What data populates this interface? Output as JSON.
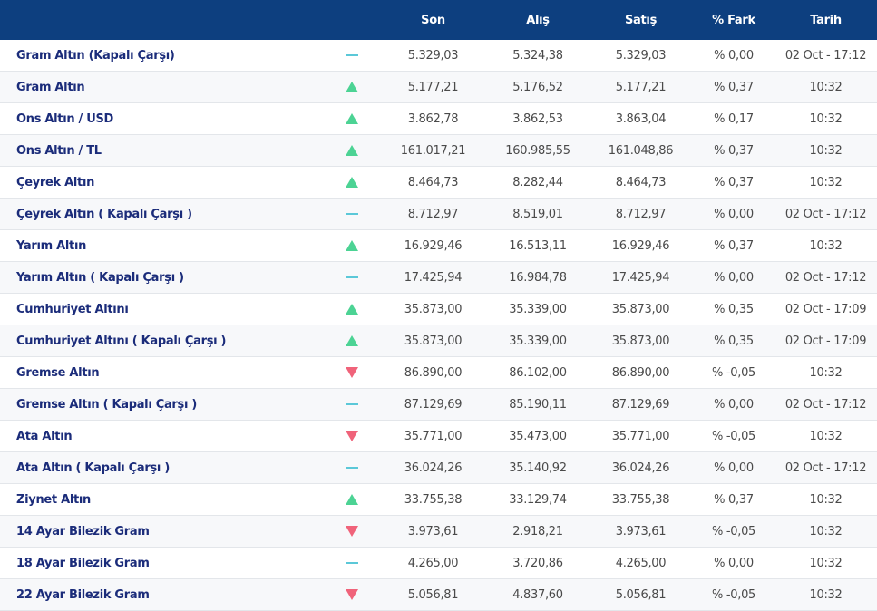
{
  "colors": {
    "header_bg": "#0d3f7f",
    "up": "#4cd394",
    "down": "#f0637a",
    "flat": "#5bc8d8",
    "name": "#1b2c7a"
  },
  "headers": {
    "son": "Son",
    "alis": "Alış",
    "satis": "Satış",
    "fark": "% Fark",
    "tarih": "Tarih"
  },
  "rows": [
    {
      "name": "Gram Altın (Kapalı Çarşı)",
      "trend": "flat-icon",
      "son": "5.329,03",
      "alis": "5.324,38",
      "satis": "5.329,03",
      "fark": "% 0,00",
      "tarih": "02 Oct - 17:12"
    },
    {
      "name": "Gram Altın",
      "trend": "up-icon",
      "son": "5.177,21",
      "alis": "5.176,52",
      "satis": "5.177,21",
      "fark": "% 0,37",
      "tarih": "10:32"
    },
    {
      "name": "Ons Altın / USD",
      "trend": "up-icon",
      "son": "3.862,78",
      "alis": "3.862,53",
      "satis": "3.863,04",
      "fark": "% 0,17",
      "tarih": "10:32"
    },
    {
      "name": "Ons Altın / TL",
      "trend": "up-icon",
      "son": "161.017,21",
      "alis": "160.985,55",
      "satis": "161.048,86",
      "fark": "% 0,37",
      "tarih": "10:32"
    },
    {
      "name": "Çeyrek Altın",
      "trend": "up-icon",
      "son": "8.464,73",
      "alis": "8.282,44",
      "satis": "8.464,73",
      "fark": "% 0,37",
      "tarih": "10:32"
    },
    {
      "name": "Çeyrek Altın ( Kapalı Çarşı )",
      "trend": "flat-icon",
      "son": "8.712,97",
      "alis": "8.519,01",
      "satis": "8.712,97",
      "fark": "% 0,00",
      "tarih": "02 Oct - 17:12"
    },
    {
      "name": "Yarım Altın",
      "trend": "up-icon",
      "son": "16.929,46",
      "alis": "16.513,11",
      "satis": "16.929,46",
      "fark": "% 0,37",
      "tarih": "10:32"
    },
    {
      "name": "Yarım Altın ( Kapalı Çarşı )",
      "trend": "flat-icon",
      "son": "17.425,94",
      "alis": "16.984,78",
      "satis": "17.425,94",
      "fark": "% 0,00",
      "tarih": "02 Oct - 17:12"
    },
    {
      "name": "Cumhuriyet Altını",
      "trend": "up-icon",
      "son": "35.873,00",
      "alis": "35.339,00",
      "satis": "35.873,00",
      "fark": "% 0,35",
      "tarih": "02 Oct - 17:09"
    },
    {
      "name": "Cumhuriyet Altını ( Kapalı Çarşı )",
      "trend": "up-icon",
      "son": "35.873,00",
      "alis": "35.339,00",
      "satis": "35.873,00",
      "fark": "% 0,35",
      "tarih": "02 Oct - 17:09"
    },
    {
      "name": "Gremse Altın",
      "trend": "down-icon",
      "son": "86.890,00",
      "alis": "86.102,00",
      "satis": "86.890,00",
      "fark": "% -0,05",
      "tarih": "10:32"
    },
    {
      "name": "Gremse Altın ( Kapalı Çarşı )",
      "trend": "flat-icon",
      "son": "87.129,69",
      "alis": "85.190,11",
      "satis": "87.129,69",
      "fark": "% 0,00",
      "tarih": "02 Oct - 17:12"
    },
    {
      "name": "Ata Altın",
      "trend": "down-icon",
      "son": "35.771,00",
      "alis": "35.473,00",
      "satis": "35.771,00",
      "fark": "% -0,05",
      "tarih": "10:32"
    },
    {
      "name": "Ata Altın ( Kapalı Çarşı )",
      "trend": "flat-icon",
      "son": "36.024,26",
      "alis": "35.140,92",
      "satis": "36.024,26",
      "fark": "% 0,00",
      "tarih": "02 Oct - 17:12"
    },
    {
      "name": "Ziynet Altın",
      "trend": "up-icon",
      "son": "33.755,38",
      "alis": "33.129,74",
      "satis": "33.755,38",
      "fark": "% 0,37",
      "tarih": "10:32"
    },
    {
      "name": "14 Ayar Bilezik Gram",
      "trend": "down-icon",
      "son": "3.973,61",
      "alis": "2.918,21",
      "satis": "3.973,61",
      "fark": "% -0,05",
      "tarih": "10:32"
    },
    {
      "name": "18 Ayar Bilezik Gram",
      "trend": "flat-icon",
      "son": "4.265,00",
      "alis": "3.720,86",
      "satis": "4.265,00",
      "fark": "% 0,00",
      "tarih": "10:32"
    },
    {
      "name": "22 Ayar Bilezik Gram",
      "trend": "down-icon",
      "son": "5.056,81",
      "alis": "4.837,60",
      "satis": "5.056,81",
      "fark": "% -0,05",
      "tarih": "10:32"
    }
  ]
}
